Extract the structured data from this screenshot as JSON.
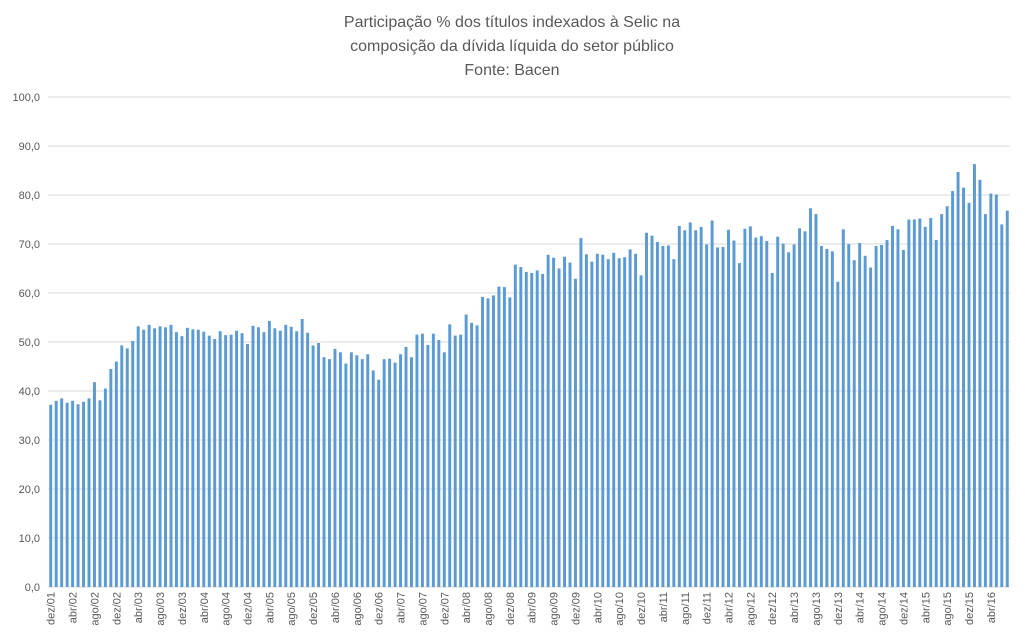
{
  "chart_data": {
    "type": "bar",
    "title": [
      "Participação % dos títulos indexados à Selic na",
      "composição da dívida líquida do setor público"
    ],
    "subtitle": "Fonte: Bacen",
    "categories": [
      "dez/01",
      null,
      null,
      null,
      "abr/02",
      null,
      null,
      null,
      "ago/02",
      null,
      null,
      null,
      "dez/02",
      null,
      null,
      null,
      "abr/03",
      null,
      null,
      null,
      "ago/03",
      null,
      null,
      null,
      "dez/03",
      null,
      null,
      null,
      "abr/04",
      null,
      null,
      null,
      "ago/04",
      null,
      null,
      null,
      "dez/04",
      null,
      null,
      null,
      "abr/05",
      null,
      null,
      null,
      "ago/05",
      null,
      null,
      null,
      "dez/05",
      null,
      null,
      null,
      "abr/06",
      null,
      null,
      null,
      "ago/06",
      null,
      null,
      null,
      "dez/06",
      null,
      null,
      null,
      "abr/07",
      null,
      null,
      null,
      "ago/07",
      null,
      null,
      null,
      "dez/07",
      null,
      null,
      null,
      "abr/08",
      null,
      null,
      null,
      "ago/08",
      null,
      null,
      null,
      "dez/08",
      null,
      null,
      null,
      "abr/09",
      null,
      null,
      null,
      "ago/09",
      null,
      null,
      null,
      "dez/09",
      null,
      null,
      null,
      "abr/10",
      null,
      null,
      null,
      "ago/10",
      null,
      null,
      null,
      "dez/10",
      null,
      null,
      null,
      "abr/11",
      null,
      null,
      null,
      "ago/11",
      null,
      null,
      null,
      "dez/11",
      null,
      null,
      null,
      "abr/12",
      null,
      null,
      null,
      "ago/12",
      null,
      null,
      null,
      "dez/12",
      null,
      null,
      null,
      "abr/13",
      null,
      null,
      null,
      "ago/13",
      null,
      null,
      null,
      "dez/13",
      null,
      null,
      null,
      "abr/14",
      null,
      null,
      null,
      "ago/14",
      null,
      null,
      null,
      "dez/14",
      null,
      null,
      null,
      "abr/15",
      null,
      null,
      null,
      "ago/15",
      null,
      null,
      null,
      "dez/15",
      null,
      null,
      null,
      "abr/16",
      null,
      null,
      null
    ],
    "values": [
      37.2,
      38.0,
      38.5,
      37.6,
      38.0,
      37.3,
      37.8,
      38.5,
      41.8,
      38.1,
      40.5,
      44.5,
      46.0,
      49.3,
      48.7,
      50.2,
      53.2,
      52.5,
      53.5,
      52.8,
      53.2,
      53.0,
      53.5,
      52.0,
      51.2,
      52.9,
      52.6,
      52.5,
      52.1,
      51.3,
      50.6,
      52.2,
      51.4,
      51.5,
      52.3,
      51.8,
      49.6,
      53.3,
      53.0,
      52.0,
      54.3,
      52.8,
      52.3,
      53.5,
      53.1,
      52.2,
      54.7,
      51.9,
      49.3,
      49.8,
      46.9,
      46.5,
      48.6,
      47.9,
      45.6,
      47.9,
      47.3,
      46.5,
      47.5,
      44.2,
      42.3,
      46.5,
      46.6,
      45.8,
      47.5,
      49.0,
      46.9,
      51.5,
      51.7,
      49.4,
      51.7,
      50.4,
      47.9,
      53.6,
      51.3,
      51.5,
      55.6,
      53.9,
      53.4,
      59.2,
      58.9,
      59.5,
      61.3,
      61.2,
      59.1,
      65.8,
      65.3,
      64.3,
      64.1,
      64.6,
      63.9,
      67.8,
      67.2,
      65.0,
      67.4,
      66.2,
      62.9,
      71.2,
      67.9,
      66.4,
      68.0,
      67.8,
      66.9,
      68.2,
      67.1,
      67.3,
      68.9,
      68.0,
      63.6,
      72.3,
      71.7,
      70.4,
      69.6,
      69.7,
      66.9,
      73.7,
      72.8,
      74.4,
      72.8,
      73.5,
      69.9,
      74.8,
      69.3,
      69.4,
      72.9,
      70.7,
      66.1,
      73.1,
      73.6,
      71.3,
      71.6,
      70.6,
      64.1,
      71.5,
      70.1,
      68.3,
      69.9,
      73.2,
      72.6,
      77.3,
      76.1,
      69.6,
      69.0,
      68.5,
      62.3,
      73.0,
      70.0,
      66.7,
      70.2,
      67.6,
      65.2,
      69.6,
      69.8,
      70.8,
      73.7,
      73.0,
      68.8,
      75.0,
      75.0,
      75.2,
      73.5,
      75.3,
      70.8,
      76.1,
      77.7,
      80.8,
      84.7,
      81.5,
      78.4,
      86.3,
      83.1,
      76.1,
      80.3,
      80.1,
      74.0,
      76.8
    ],
    "color": "#5b9bd5",
    "ylim": [
      0,
      100
    ],
    "yticks": [
      {
        "value": 0,
        "label": "0,0"
      },
      {
        "value": 10,
        "label": "10,0"
      },
      {
        "value": 20,
        "label": "20,0"
      },
      {
        "value": 30,
        "label": "30,0"
      },
      {
        "value": 40,
        "label": "40,0"
      },
      {
        "value": 50,
        "label": "50,0"
      },
      {
        "value": 60,
        "label": "60,0"
      },
      {
        "value": 70,
        "label": "70,0"
      },
      {
        "value": 80,
        "label": "80,0"
      },
      {
        "value": 90,
        "label": "90,0"
      },
      {
        "value": 100,
        "label": "100,0"
      }
    ],
    "grid": true
  }
}
